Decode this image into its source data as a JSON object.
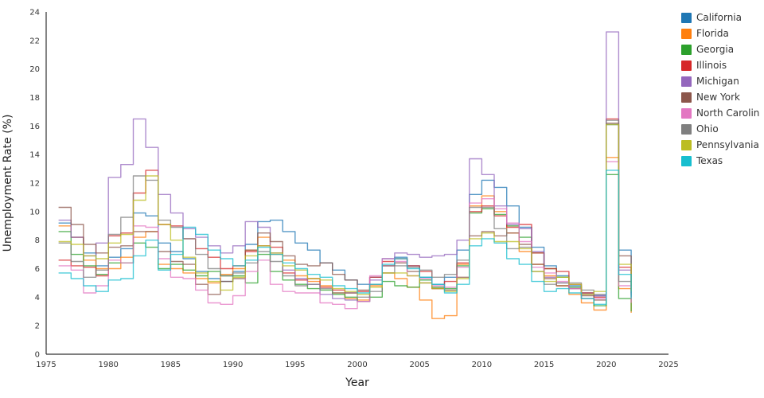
{
  "chart_data": {
    "type": "line",
    "interpolation": "step-after",
    "title": "",
    "xlabel": "Year",
    "ylabel": "Unemployment Rate (%)",
    "xlim": [
      1975,
      2025
    ],
    "ylim": [
      0,
      24
    ],
    "x_ticks": [
      1975,
      1980,
      1985,
      1990,
      1995,
      2000,
      2005,
      2010,
      2015,
      2020,
      2025
    ],
    "y_ticks": [
      0,
      2,
      4,
      6,
      8,
      10,
      12,
      14,
      16,
      18,
      20,
      22,
      24
    ],
    "grid": false,
    "legend_position": "right-outside",
    "line_opacity": 0.75,
    "x": [
      1976,
      1977,
      1978,
      1979,
      1980,
      1981,
      1982,
      1983,
      1984,
      1985,
      1986,
      1987,
      1988,
      1989,
      1990,
      1991,
      1992,
      1993,
      1994,
      1995,
      1996,
      1997,
      1998,
      1999,
      2000,
      2001,
      2002,
      2003,
      2004,
      2005,
      2006,
      2007,
      2008,
      2009,
      2010,
      2011,
      2012,
      2013,
      2014,
      2015,
      2016,
      2017,
      2018,
      2019,
      2020,
      2021,
      2022
    ],
    "series": [
      {
        "name": "California",
        "color": "#1f77b4",
        "values": [
          9.2,
          8.2,
          7.1,
          6.2,
          6.8,
          7.4,
          9.9,
          9.7,
          7.8,
          7.2,
          6.7,
          5.8,
          5.3,
          5.1,
          5.8,
          7.7,
          9.3,
          9.4,
          8.6,
          7.8,
          7.3,
          6.4,
          5.9,
          5.2,
          4.9,
          5.4,
          6.7,
          6.8,
          6.2,
          5.4,
          4.9,
          5.4,
          7.3,
          11.2,
          12.2,
          11.7,
          10.4,
          8.9,
          7.5,
          6.2,
          5.5,
          4.8,
          4.3,
          4.1,
          16.1,
          7.3,
          4.2
        ]
      },
      {
        "name": "Florida",
        "color": "#ff7f0e",
        "values": [
          9.0,
          8.2,
          6.6,
          6.0,
          6.0,
          6.8,
          8.2,
          8.6,
          6.3,
          6.0,
          5.7,
          5.3,
          5.0,
          5.6,
          6.0,
          7.3,
          8.2,
          7.0,
          6.6,
          5.5,
          5.1,
          4.8,
          4.3,
          3.9,
          3.8,
          4.8,
          5.7,
          5.3,
          4.7,
          3.8,
          2.5,
          2.7,
          6.3,
          10.4,
          11.1,
          10.0,
          8.5,
          7.2,
          6.3,
          5.5,
          4.8,
          4.2,
          3.6,
          3.1,
          13.8,
          4.6,
          2.9
        ]
      },
      {
        "name": "Georgia",
        "color": "#2ca02c",
        "values": [
          8.6,
          7.0,
          6.2,
          5.6,
          6.4,
          6.4,
          7.8,
          7.5,
          6.0,
          6.3,
          5.9,
          5.5,
          5.8,
          5.5,
          5.5,
          5.0,
          7.0,
          5.8,
          5.2,
          4.9,
          4.6,
          4.5,
          4.2,
          4.0,
          3.7,
          4.0,
          5.1,
          4.8,
          4.7,
          5.2,
          4.7,
          4.6,
          6.2,
          9.9,
          10.2,
          9.8,
          9.0,
          8.2,
          7.1,
          6.0,
          5.4,
          4.7,
          3.9,
          3.4,
          12.6,
          3.9,
          3.0
        ]
      },
      {
        "name": "Illinois",
        "color": "#d62728",
        "values": [
          6.6,
          6.2,
          6.1,
          5.5,
          8.3,
          8.5,
          11.3,
          12.9,
          9.1,
          9.0,
          8.1,
          7.4,
          6.8,
          6.0,
          6.2,
          7.2,
          7.6,
          7.5,
          5.7,
          5.2,
          5.3,
          4.7,
          4.5,
          4.3,
          4.4,
          5.4,
          6.5,
          6.7,
          6.2,
          5.8,
          4.6,
          5.1,
          6.4,
          10.0,
          10.4,
          9.7,
          8.9,
          9.1,
          7.1,
          6.0,
          5.8,
          4.9,
          4.3,
          4.0,
          16.5,
          6.1,
          4.5
        ]
      },
      {
        "name": "Michigan",
        "color": "#9467bd",
        "values": [
          9.4,
          8.2,
          6.9,
          7.8,
          12.4,
          13.3,
          16.5,
          14.5,
          11.2,
          9.9,
          8.8,
          8.2,
          7.6,
          7.1,
          7.6,
          9.3,
          8.9,
          7.1,
          5.9,
          5.3,
          4.9,
          4.2,
          3.9,
          3.8,
          3.7,
          5.2,
          6.2,
          7.1,
          7.0,
          6.8,
          6.9,
          7.0,
          8.0,
          13.7,
          12.6,
          10.4,
          9.1,
          8.8,
          7.2,
          5.4,
          5.0,
          4.6,
          4.2,
          4.1,
          22.6,
          5.9,
          4.1
        ]
      },
      {
        "name": "New York",
        "color": "#8c564b",
        "values": [
          10.3,
          9.1,
          7.7,
          7.1,
          7.5,
          7.6,
          8.6,
          8.6,
          7.2,
          6.5,
          6.3,
          4.9,
          4.2,
          5.1,
          5.3,
          7.3,
          8.5,
          7.9,
          6.9,
          6.3,
          6.2,
          6.4,
          5.6,
          5.2,
          4.5,
          4.9,
          6.2,
          6.4,
          5.8,
          5.0,
          4.6,
          4.5,
          5.4,
          8.3,
          8.6,
          8.3,
          8.5,
          7.7,
          6.3,
          5.3,
          4.8,
          4.6,
          4.1,
          3.8,
          16.2,
          6.9,
          4.3
        ]
      },
      {
        "name": "North Carolina",
        "color": "#e377c2",
        "values": [
          6.2,
          5.9,
          4.3,
          4.8,
          6.6,
          6.4,
          9.0,
          8.9,
          6.7,
          5.4,
          5.3,
          4.5,
          3.6,
          3.5,
          4.1,
          5.8,
          6.6,
          4.9,
          4.4,
          4.3,
          4.3,
          3.6,
          3.5,
          3.2,
          3.7,
          5.5,
          6.7,
          6.5,
          5.5,
          5.3,
          4.8,
          4.7,
          6.1,
          10.6,
          10.9,
          10.2,
          9.2,
          7.9,
          6.1,
          5.7,
          5.1,
          4.6,
          3.9,
          3.9,
          13.5,
          4.8,
          3.6
        ]
      },
      {
        "name": "Ohio",
        "color": "#7f7f7f",
        "values": [
          7.8,
          6.5,
          5.4,
          5.9,
          8.4,
          9.6,
          12.5,
          12.2,
          9.4,
          8.9,
          8.1,
          7.0,
          6.0,
          5.5,
          5.7,
          6.4,
          7.2,
          6.5,
          5.5,
          4.8,
          4.9,
          4.6,
          4.3,
          4.3,
          4.0,
          4.4,
          5.7,
          6.2,
          6.1,
          5.9,
          5.4,
          5.6,
          6.6,
          10.3,
          10.3,
          8.8,
          7.4,
          7.5,
          5.8,
          4.9,
          5.0,
          5.0,
          4.5,
          4.2,
          16.4,
          5.1,
          4.0
        ]
      },
      {
        "name": "Pennsylvania",
        "color": "#bcbd22",
        "values": [
          7.9,
          7.7,
          6.9,
          6.7,
          7.8,
          8.4,
          10.8,
          12.5,
          9.1,
          8.0,
          6.8,
          5.7,
          5.1,
          4.5,
          5.4,
          6.9,
          7.6,
          7.1,
          6.2,
          5.9,
          5.3,
          5.2,
          4.6,
          4.4,
          4.2,
          4.7,
          5.7,
          5.7,
          5.5,
          5.0,
          4.6,
          4.4,
          5.3,
          8.1,
          8.5,
          7.9,
          7.9,
          7.4,
          5.8,
          5.1,
          5.4,
          4.9,
          4.2,
          4.4,
          16.1,
          6.3,
          4.4
        ]
      },
      {
        "name": "Texas",
        "color": "#17becf",
        "values": [
          5.7,
          5.3,
          4.8,
          4.4,
          5.2,
          5.3,
          6.9,
          8.0,
          5.9,
          7.0,
          8.9,
          8.4,
          7.3,
          6.7,
          6.2,
          6.6,
          7.5,
          7.0,
          6.4,
          6.0,
          5.6,
          5.4,
          4.8,
          4.6,
          4.3,
          4.9,
          6.3,
          6.7,
          6.0,
          5.4,
          4.9,
          4.3,
          4.9,
          7.6,
          8.1,
          7.8,
          6.7,
          6.3,
          5.1,
          4.4,
          4.6,
          4.3,
          3.9,
          3.5,
          12.9,
          5.6,
          3.9
        ]
      }
    ]
  }
}
